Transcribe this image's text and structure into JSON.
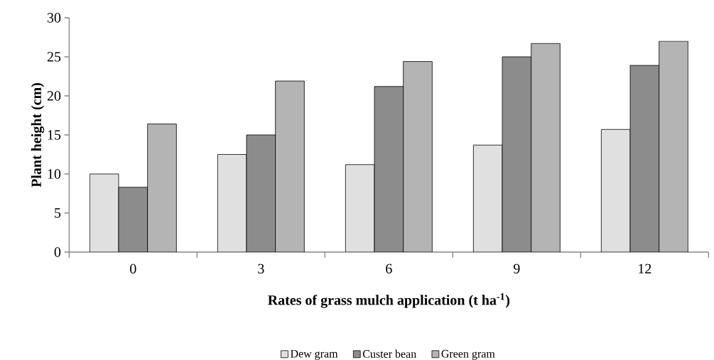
{
  "chart_data": {
    "type": "bar",
    "xlabel": "Rates of grass mulch application (t ha$^{-1}$)",
    "ylabel": "Plant height (cm)",
    "categories": [
      "0",
      "3",
      "6",
      "9",
      "12"
    ],
    "series": [
      {
        "name": "Dew gram",
        "color": "#e0e0e0",
        "values": [
          10.0,
          12.5,
          11.2,
          13.7,
          15.7
        ]
      },
      {
        "name": "Custer bean",
        "color": "#8c8c8c",
        "values": [
          8.3,
          15.0,
          21.2,
          25.0,
          23.9
        ]
      },
      {
        "name": "Green gram",
        "color": "#b4b4b4",
        "values": [
          16.4,
          21.9,
          24.4,
          26.7,
          27.0
        ]
      }
    ],
    "ylim": [
      0,
      30
    ],
    "yticks": [
      0,
      5,
      10,
      15,
      20,
      25,
      30
    ],
    "grid": false,
    "legend": "bottom"
  }
}
